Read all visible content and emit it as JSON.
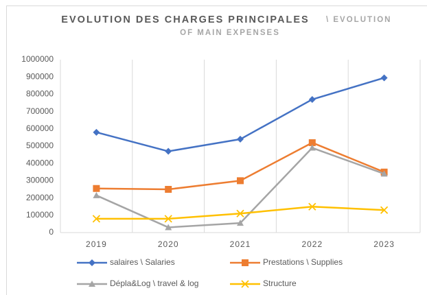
{
  "chart_data": {
    "type": "line",
    "title": "EVOLUTION DES CHARGES PRINCIPALES",
    "subtitle": "\\ EVOLUTION OF MAIN EXPENSES",
    "categories": [
      "2019",
      "2020",
      "2021",
      "2022",
      "2023"
    ],
    "series": [
      {
        "name": "salaires \\ Salaries",
        "color": "#4472c4",
        "marker": "diamond",
        "values": [
          580000,
          470000,
          540000,
          770000,
          895000
        ]
      },
      {
        "name": "Prestations \\ Supplies",
        "color": "#ed7d31",
        "marker": "square",
        "values": [
          255000,
          250000,
          300000,
          520000,
          350000
        ]
      },
      {
        "name": "Dépla&Log \\ travel & log",
        "color": "#a5a5a5",
        "marker": "triangle",
        "values": [
          215000,
          30000,
          55000,
          490000,
          340000
        ]
      },
      {
        "name": "Structure",
        "color": "#ffc000",
        "marker": "x",
        "values": [
          80000,
          80000,
          110000,
          150000,
          130000
        ]
      }
    ],
    "ylim": [
      0,
      1000000
    ],
    "yticks": [
      0,
      100000,
      200000,
      300000,
      400000,
      500000,
      600000,
      700000,
      800000,
      900000,
      1000000
    ],
    "grid": "x",
    "legend": "bottom"
  }
}
